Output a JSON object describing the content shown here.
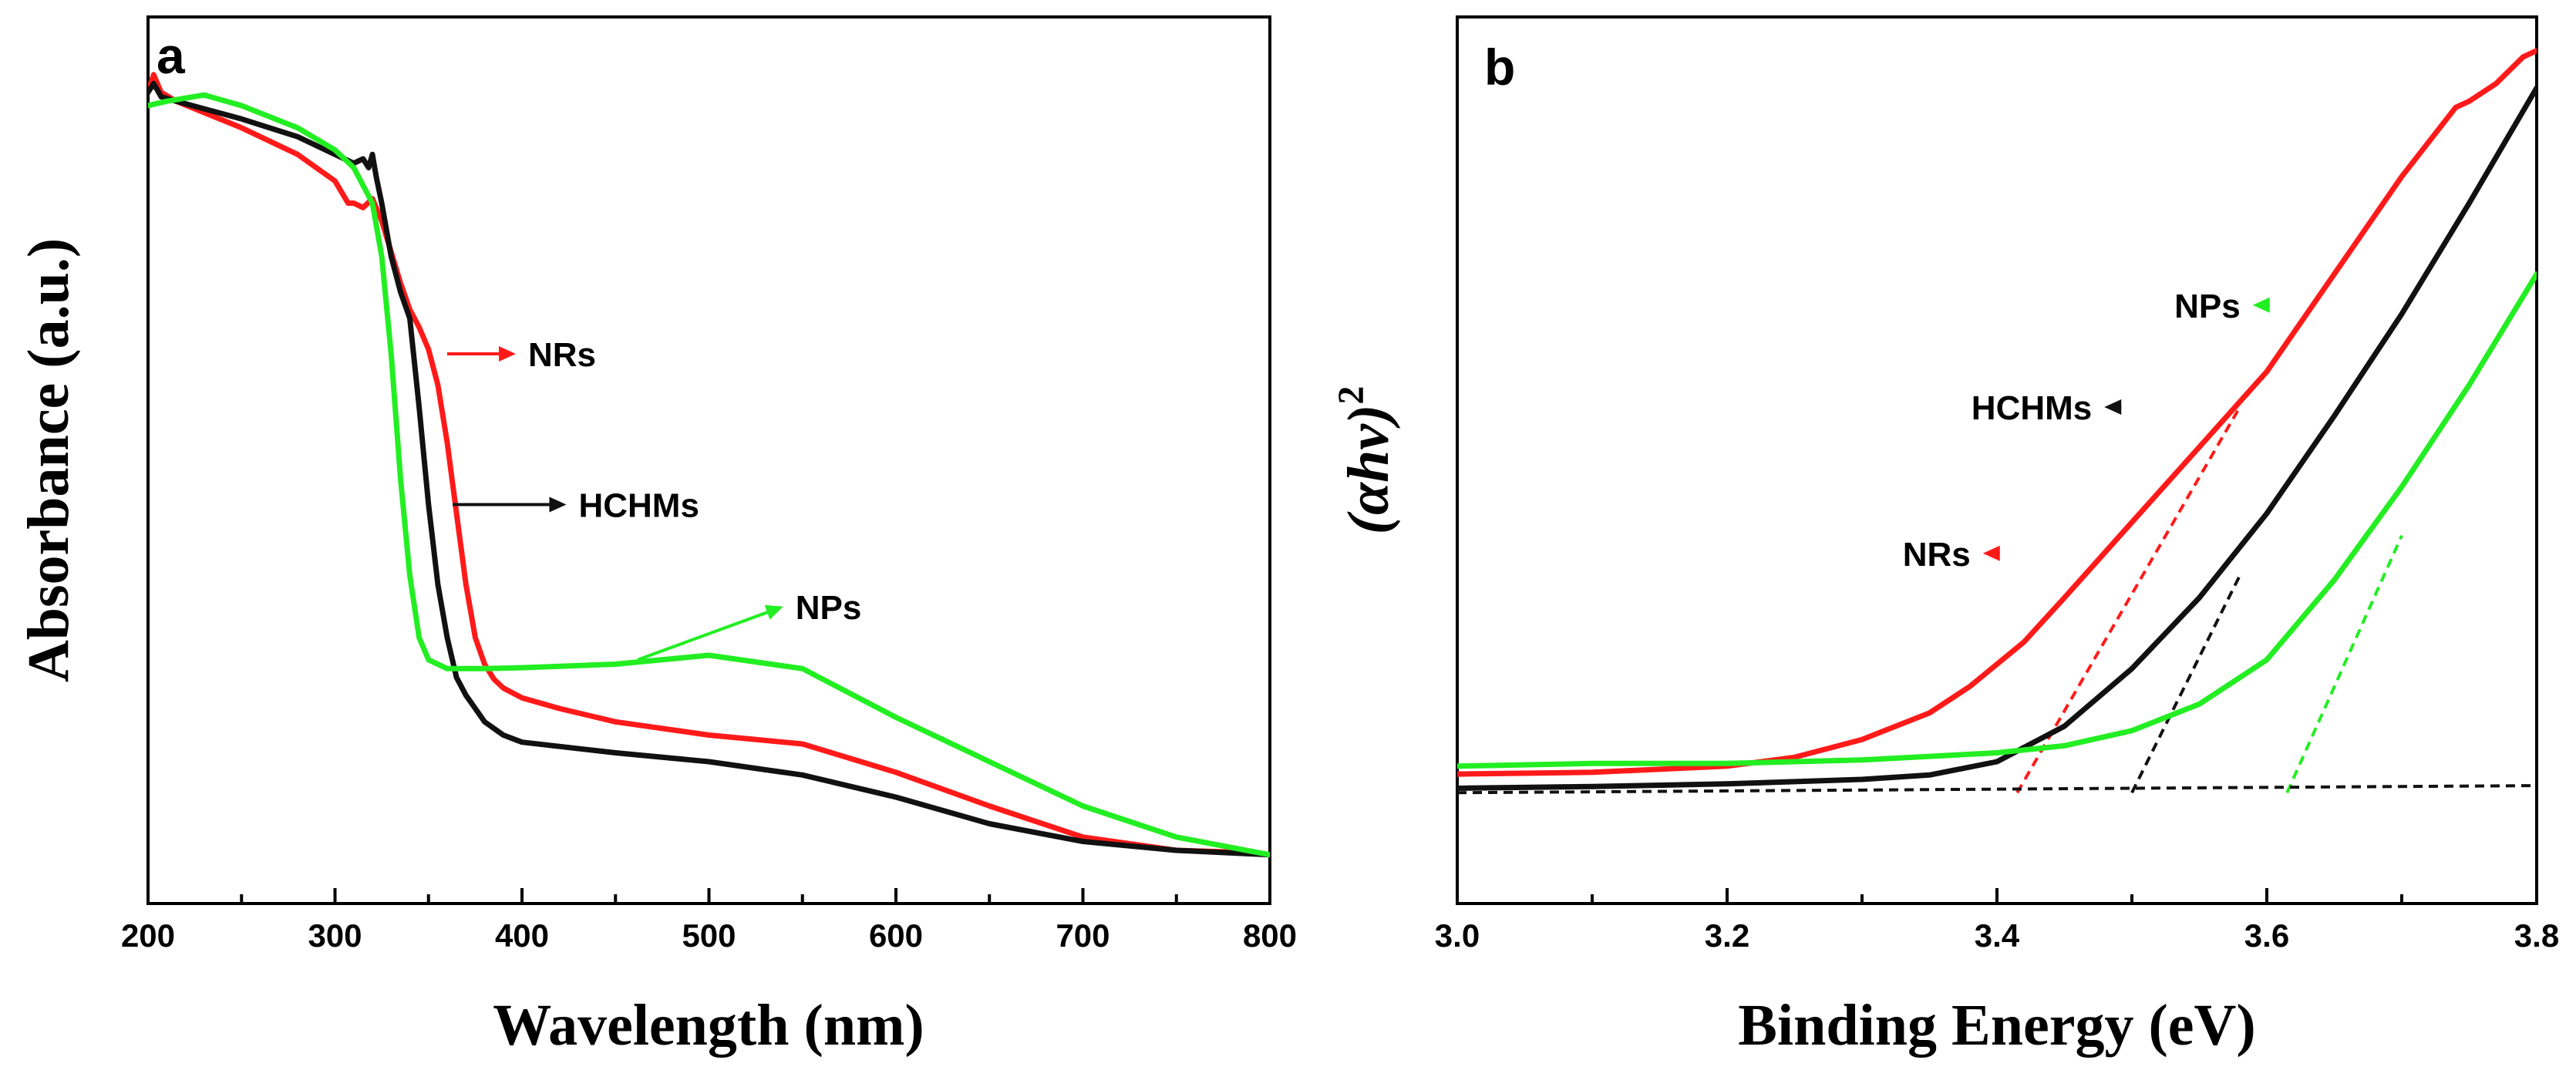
{
  "colors": {
    "NRs": "#ff1a1a",
    "HCHMs": "#111111",
    "NPs": "#22ee22",
    "baseline": "#111111"
  },
  "chart_data": [
    {
      "type": "line",
      "panel": "a",
      "xlabel": "Wavelength (nm)",
      "ylabel": "Absorbance (a.u.)",
      "xlim": [
        200,
        800
      ],
      "ylim": [
        0,
        1
      ],
      "x_ticks": [
        "200",
        "300",
        "400",
        "500",
        "600",
        "700",
        "800"
      ],
      "y_ticks_shown": false,
      "series": [
        {
          "name": "NRs",
          "color_key": "NRs",
          "x": [
            200,
            203,
            207,
            215,
            250,
            280,
            300,
            307,
            310,
            315,
            320,
            325,
            330,
            335,
            340,
            345,
            350,
            355,
            360,
            365,
            370,
            375,
            380,
            385,
            390,
            400,
            420,
            450,
            500,
            550,
            600,
            650,
            700,
            750,
            780,
            800
          ],
          "y": [
            0.915,
            0.935,
            0.915,
            0.905,
            0.875,
            0.845,
            0.815,
            0.79,
            0.79,
            0.785,
            0.795,
            0.77,
            0.735,
            0.7,
            0.67,
            0.65,
            0.625,
            0.585,
            0.52,
            0.44,
            0.36,
            0.3,
            0.27,
            0.253,
            0.243,
            0.232,
            0.22,
            0.205,
            0.19,
            0.18,
            0.148,
            0.11,
            0.075,
            0.06,
            0.058,
            0.055
          ]
        },
        {
          "name": "HCHMs",
          "color_key": "HCHMs",
          "x": [
            200,
            203,
            207,
            215,
            250,
            280,
            300,
            310,
            315,
            318,
            320,
            322,
            325,
            330,
            335,
            340,
            345,
            350,
            355,
            360,
            365,
            370,
            375,
            380,
            390,
            400,
            450,
            500,
            550,
            600,
            650,
            700,
            750,
            800
          ],
          "y": [
            0.915,
            0.925,
            0.91,
            0.905,
            0.885,
            0.865,
            0.845,
            0.835,
            0.84,
            0.83,
            0.845,
            0.82,
            0.79,
            0.73,
            0.69,
            0.66,
            0.56,
            0.45,
            0.36,
            0.3,
            0.255,
            0.235,
            0.22,
            0.205,
            0.19,
            0.182,
            0.17,
            0.16,
            0.145,
            0.12,
            0.09,
            0.07,
            0.06,
            0.055
          ]
        },
        {
          "name": "NPs",
          "color_key": "NPs",
          "x": [
            200,
            210,
            230,
            250,
            280,
            300,
            310,
            320,
            325,
            330,
            335,
            340,
            345,
            350,
            360,
            370,
            380,
            400,
            450,
            500,
            550,
            600,
            650,
            700,
            750,
            800
          ],
          "y": [
            0.9,
            0.905,
            0.912,
            0.9,
            0.875,
            0.85,
            0.83,
            0.79,
            0.73,
            0.62,
            0.48,
            0.37,
            0.3,
            0.275,
            0.265,
            0.265,
            0.265,
            0.266,
            0.27,
            0.28,
            0.265,
            0.21,
            0.16,
            0.11,
            0.075,
            0.055
          ]
        }
      ],
      "annotations": [
        {
          "label": "NRs",
          "color_key": "NRs",
          "target": [
            360,
            0.62
          ],
          "text_at": [
            400,
            0.62
          ],
          "anchor": "start"
        },
        {
          "label": "HCHMs",
          "color_key": "HCHMs",
          "target": [
            363,
            0.45
          ],
          "text_at": [
            427,
            0.45
          ],
          "anchor": "start"
        },
        {
          "label": "NPs",
          "color_key": "NPs",
          "target": [
            462,
            0.275
          ],
          "text_at": [
            543,
            0.335
          ],
          "anchor": "start"
        }
      ]
    },
    {
      "type": "line",
      "panel": "b",
      "xlabel": "Binding Energy (eV)",
      "ylabel": "(αhν)2",
      "ylabel_base": "(αhν)",
      "ylabel_sup": "2",
      "xlim": [
        3.0,
        3.8
      ],
      "ylim": [
        0,
        1
      ],
      "x_ticks": [
        "3.0",
        "3.2",
        "3.4",
        "3.6",
        "3.8"
      ],
      "y_ticks_shown": false,
      "series": [
        {
          "name": "NRs",
          "color_key": "NRs",
          "x": [
            3.0,
            3.1,
            3.2,
            3.25,
            3.3,
            3.35,
            3.38,
            3.42,
            3.45,
            3.5,
            3.55,
            3.6,
            3.65,
            3.7,
            3.74,
            3.75,
            3.77,
            3.79,
            3.8
          ],
          "y": [
            0.146,
            0.148,
            0.155,
            0.165,
            0.185,
            0.215,
            0.245,
            0.295,
            0.345,
            0.43,
            0.515,
            0.6,
            0.71,
            0.82,
            0.898,
            0.905,
            0.925,
            0.955,
            0.962
          ]
        },
        {
          "name": "HCHMs",
          "color_key": "HCHMs",
          "x": [
            3.0,
            3.1,
            3.2,
            3.3,
            3.35,
            3.4,
            3.45,
            3.5,
            3.55,
            3.6,
            3.65,
            3.7,
            3.75,
            3.8
          ],
          "y": [
            0.13,
            0.132,
            0.135,
            0.14,
            0.145,
            0.16,
            0.2,
            0.265,
            0.345,
            0.44,
            0.55,
            0.665,
            0.79,
            0.92
          ]
        },
        {
          "name": "NPs",
          "color_key": "NPs",
          "x": [
            3.0,
            3.1,
            3.2,
            3.3,
            3.4,
            3.45,
            3.5,
            3.55,
            3.6,
            3.65,
            3.7,
            3.75,
            3.8
          ],
          "y": [
            0.155,
            0.158,
            0.158,
            0.162,
            0.17,
            0.178,
            0.195,
            0.225,
            0.275,
            0.365,
            0.47,
            0.585,
            0.71
          ]
        }
      ],
      "tangent_lines": [
        {
          "name": "NRs tangent",
          "color_key": "NRs",
          "x": [
            3.415,
            3.58
          ],
          "y": [
            0.125,
            0.56
          ]
        },
        {
          "name": "HCHMs tangent",
          "color_key": "HCHMs",
          "x": [
            3.5,
            3.58
          ],
          "y": [
            0.125,
            0.37
          ]
        },
        {
          "name": "NPs tangent",
          "color_key": "NPs",
          "x": [
            3.615,
            3.7
          ],
          "y": [
            0.125,
            0.415
          ]
        },
        {
          "name": "baseline",
          "color_key": "baseline",
          "x": [
            3.0,
            3.8
          ],
          "y": [
            0.125,
            0.133
          ]
        }
      ],
      "annotations": [
        {
          "label": "NPs",
          "color_key": "NPs",
          "target": [
            3.6,
            0.675
          ],
          "text_at": [
            3.585,
            0.675
          ],
          "anchor": "end"
        },
        {
          "label": "HCHMs",
          "color_key": "HCHMs",
          "target": [
            3.49,
            0.56
          ],
          "text_at": [
            3.475,
            0.56
          ],
          "anchor": "end"
        },
        {
          "label": "NRs",
          "color_key": "NRs",
          "target": [
            3.4,
            0.395
          ],
          "text_at": [
            3.385,
            0.395
          ],
          "anchor": "end"
        }
      ]
    }
  ]
}
